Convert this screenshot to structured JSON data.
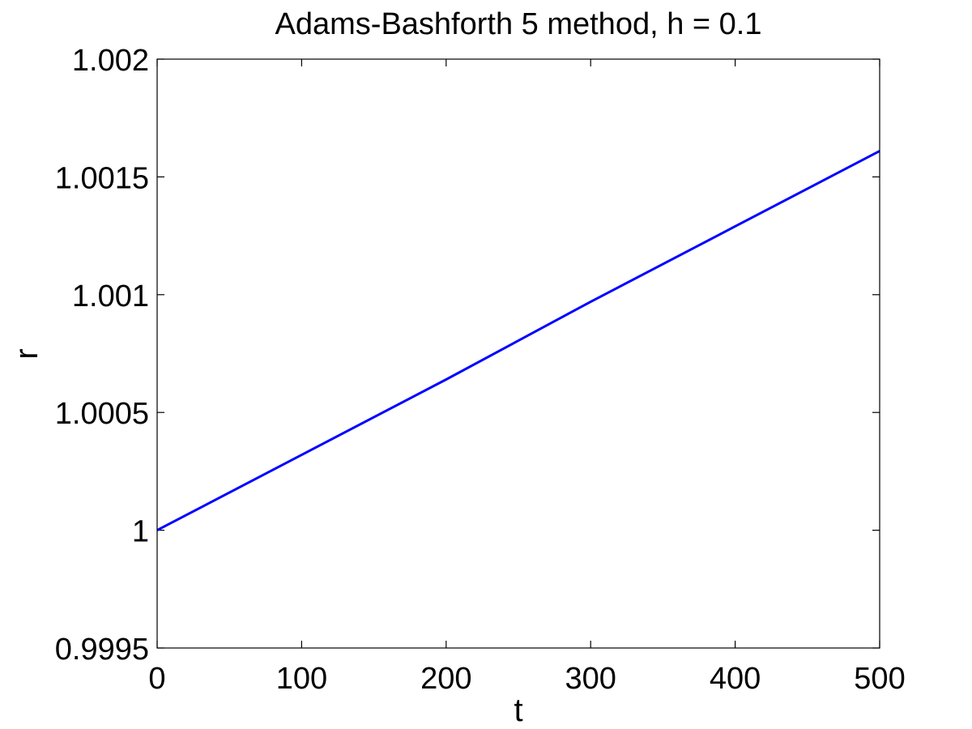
{
  "chart_data": {
    "type": "line",
    "title": "Adams-Bashforth 5 method, h = 0.1",
    "xlabel": "t",
    "ylabel": "r",
    "xlim": [
      0,
      500
    ],
    "ylim": [
      0.9995,
      1.002
    ],
    "x_ticks": [
      0,
      100,
      200,
      300,
      400,
      500
    ],
    "x_tick_labels": [
      "0",
      "100",
      "200",
      "300",
      "400",
      "500"
    ],
    "y_ticks": [
      0.9995,
      1.0,
      1.0005,
      1.001,
      1.0015,
      1.002
    ],
    "y_tick_labels": [
      "0.9995",
      "1",
      "1.0005",
      "1.001",
      "1.0015",
      "1.002"
    ],
    "grid": false,
    "series": [
      {
        "color": "#0000ff",
        "x": [
          0,
          100,
          200,
          300,
          400,
          500
        ],
        "y": [
          1.0,
          1.00032,
          1.00064,
          1.00097,
          1.00129,
          1.00161
        ]
      }
    ]
  }
}
